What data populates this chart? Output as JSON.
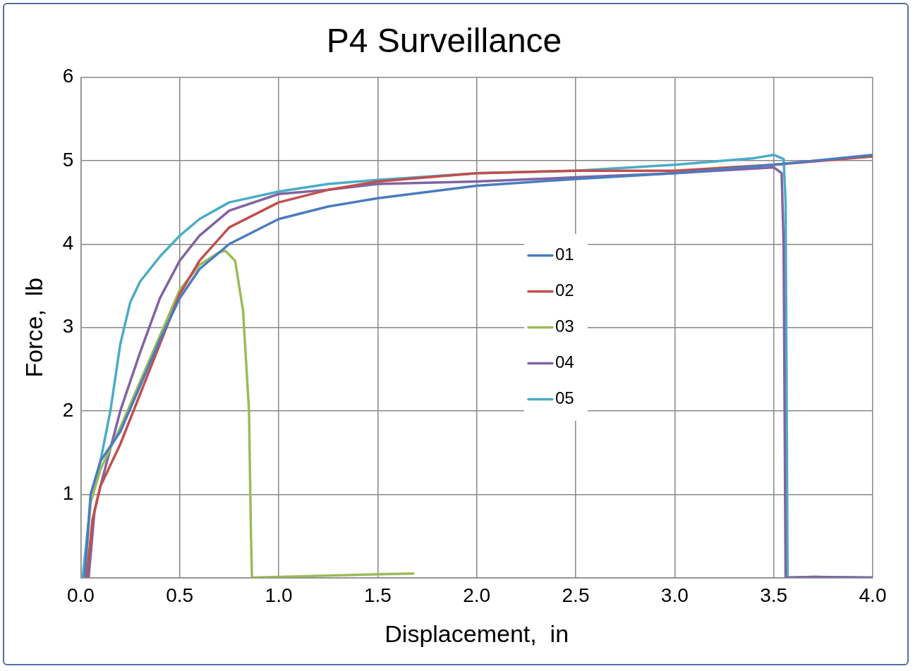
{
  "chart_data": {
    "type": "line",
    "title": "P4 Surveillance",
    "xlabel": "Displacement,  in",
    "ylabel": "Force,  lb",
    "xlim": [
      0,
      4
    ],
    "xticks": [
      {
        "value": 0,
        "label": "0.0"
      },
      {
        "value": 0.5,
        "label": "0.5"
      },
      {
        "value": 1,
        "label": "1.0"
      },
      {
        "value": 1.5,
        "label": "1.5"
      },
      {
        "value": 2,
        "label": "2.0"
      },
      {
        "value": 2.5,
        "label": "2.5"
      },
      {
        "value": 3,
        "label": "3.0"
      },
      {
        "value": 3.5,
        "label": "3.5"
      },
      {
        "value": 4,
        "label": "4.0"
      }
    ],
    "ylim": [
      0,
      6
    ],
    "yticks": [
      {
        "value": 0,
        "label": null
      },
      1,
      2,
      3,
      4,
      5,
      6
    ],
    "grid": true,
    "legend": "center",
    "marker": "none",
    "line_style": "solid",
    "series": [
      {
        "name": "01",
        "color": "#4a7cc0",
        "x": [
          0.02,
          0.05,
          0.1,
          0.2,
          0.3,
          0.4,
          0.5,
          0.6,
          0.75,
          1.0,
          1.25,
          1.5,
          2.0,
          2.5,
          3.0,
          3.5,
          4.0
        ],
        "values": [
          0,
          1.0,
          1.4,
          1.75,
          2.3,
          2.85,
          3.35,
          3.7,
          4.0,
          4.3,
          4.45,
          4.55,
          4.7,
          4.78,
          4.85,
          4.95,
          5.07
        ]
      },
      {
        "name": "02",
        "color": "#c0504d",
        "x": [
          0.03,
          0.06,
          0.1,
          0.2,
          0.3,
          0.4,
          0.5,
          0.6,
          0.75,
          1.0,
          1.25,
          1.5,
          2.0,
          2.5,
          3.0,
          3.5,
          4.0
        ],
        "values": [
          0,
          0.7,
          1.1,
          1.6,
          2.2,
          2.8,
          3.4,
          3.8,
          4.2,
          4.5,
          4.65,
          4.75,
          4.85,
          4.88,
          4.88,
          4.95,
          5.05
        ]
      },
      {
        "name": "03",
        "color": "#9bbb59",
        "x": [
          0.02,
          0.05,
          0.1,
          0.2,
          0.3,
          0.4,
          0.5,
          0.6,
          0.7,
          0.73,
          0.78,
          0.82,
          0.85,
          0.86,
          0.865,
          1.0,
          1.5,
          1.68
        ],
        "values": [
          0,
          0.9,
          1.3,
          1.8,
          2.35,
          2.9,
          3.45,
          3.75,
          3.9,
          3.92,
          3.8,
          3.2,
          2.0,
          0.5,
          0,
          0.01,
          0.04,
          0.05
        ]
      },
      {
        "name": "04",
        "color": "#8064a2",
        "x": [
          0.04,
          0.07,
          0.1,
          0.2,
          0.3,
          0.4,
          0.5,
          0.6,
          0.75,
          1.0,
          1.25,
          1.5,
          2.0,
          2.5,
          3.0,
          3.5,
          3.54,
          3.55,
          3.56,
          3.7,
          4.0
        ],
        "values": [
          0,
          0.8,
          1.1,
          2.0,
          2.7,
          3.35,
          3.8,
          4.1,
          4.4,
          4.6,
          4.65,
          4.72,
          4.75,
          4.8,
          4.85,
          4.92,
          4.85,
          4.0,
          0,
          0.01,
          0
        ]
      },
      {
        "name": "05",
        "color": "#4bacc6",
        "x": [
          0.01,
          0.05,
          0.1,
          0.15,
          0.2,
          0.25,
          0.3,
          0.4,
          0.5,
          0.6,
          0.75,
          1.0,
          1.25,
          1.5,
          2.0,
          2.5,
          3.0,
          3.4,
          3.5,
          3.55,
          3.56,
          3.57,
          3.7,
          4.0
        ],
        "values": [
          0,
          0.9,
          1.4,
          2.0,
          2.8,
          3.3,
          3.55,
          3.85,
          4.1,
          4.3,
          4.5,
          4.63,
          4.72,
          4.77,
          4.85,
          4.88,
          4.95,
          5.03,
          5.07,
          5.02,
          4.5,
          0,
          0.01,
          0
        ]
      }
    ]
  }
}
